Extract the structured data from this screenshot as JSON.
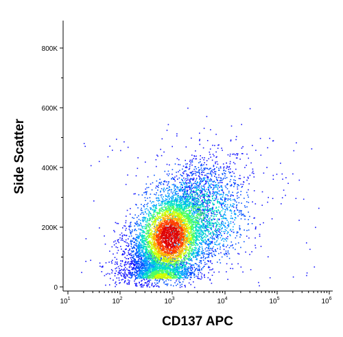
{
  "chart_data": {
    "type": "scatter",
    "xlabel": "CD137 APC",
    "ylabel": "Side Scatter",
    "x_scale": "log",
    "y_scale": "linear",
    "xlim": [
      10,
      1000000
    ],
    "ylim": [
      0,
      880000
    ],
    "x_ticks": [
      {
        "base": "10",
        "exp": "1"
      },
      {
        "base": "10",
        "exp": "2"
      },
      {
        "base": "10",
        "exp": "3"
      },
      {
        "base": "10",
        "exp": "4"
      },
      {
        "base": "10",
        "exp": "5"
      },
      {
        "base": "10",
        "exp": "6"
      }
    ],
    "x_tick_values": [
      10,
      100,
      1000,
      10000,
      100000,
      1000000
    ],
    "y_ticks": [
      {
        "value": 0,
        "label": "0"
      },
      {
        "value": 200000,
        "label": "200K"
      },
      {
        "value": 400000,
        "label": "400K"
      },
      {
        "value": 600000,
        "label": "600K"
      },
      {
        "value": 800000,
        "label": "800K"
      }
    ],
    "density_colors": [
      "#1414ff",
      "#0050ff",
      "#00a0ff",
      "#00e0c8",
      "#50ff60",
      "#d0ff00",
      "#ffb000",
      "#ff4000",
      "#e00000"
    ],
    "populations": [
      {
        "center_x": 900,
        "center_y": 170000,
        "peak_density": 1.0
      },
      {
        "center_x": 2500,
        "center_y": 230000,
        "peak_density": 0.5
      },
      {
        "center_x": 700,
        "center_y": 30000,
        "peak_density": 0.45
      }
    ],
    "grid": false
  }
}
